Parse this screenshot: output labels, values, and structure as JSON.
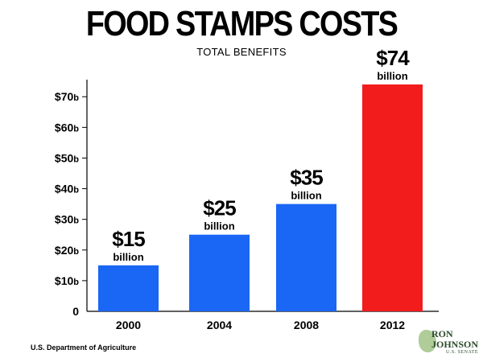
{
  "chart_data": {
    "type": "bar",
    "title": "FOOD STAMPS COSTS",
    "subtitle": "TOTAL BENEFITS",
    "xlabel": "",
    "ylabel": "",
    "categories": [
      "2000",
      "2004",
      "2008",
      "2012"
    ],
    "values": [
      15,
      25,
      35,
      74
    ],
    "data_labels": [
      {
        "value": "$15",
        "unit": "billion"
      },
      {
        "value": "$25",
        "unit": "billion"
      },
      {
        "value": "$35",
        "unit": "billion"
      },
      {
        "value": "$74",
        "unit": "billion"
      }
    ],
    "bar_colors": [
      "#1a66f5",
      "#1a66f5",
      "#1a66f5",
      "#f21c1c"
    ],
    "ylim": [
      0,
      74
    ],
    "yticks": [
      {
        "value": 0,
        "label": "0",
        "suffix": ""
      },
      {
        "value": 10,
        "label": "$10",
        "suffix": "b"
      },
      {
        "value": 20,
        "label": "$20",
        "suffix": "b"
      },
      {
        "value": 30,
        "label": "$30",
        "suffix": "b"
      },
      {
        "value": 40,
        "label": "$40",
        "suffix": "b"
      },
      {
        "value": 50,
        "label": "$50",
        "suffix": "b"
      },
      {
        "value": 60,
        "label": "$60",
        "suffix": "b"
      },
      {
        "value": 70,
        "label": "$70",
        "suffix": "b"
      }
    ],
    "grid": false
  },
  "source": "U.S. Department of Agriculture",
  "logo": {
    "line1": "RON",
    "line2": "JOHNSON",
    "line3": "U.S. SENATE"
  }
}
